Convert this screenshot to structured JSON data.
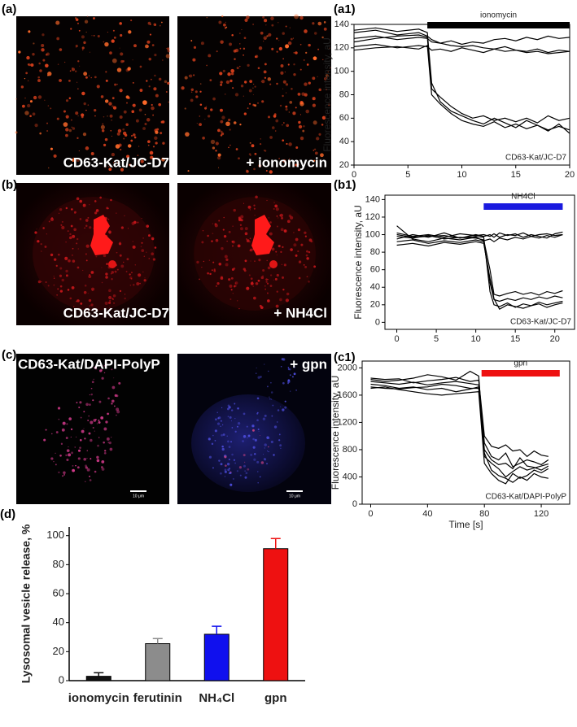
{
  "images": [
    {
      "panel": "(a)",
      "labels": [
        "CD63-Kat/JC-D7",
        "+ ionomycin"
      ]
    },
    {
      "panel": "(b)",
      "labels": [
        "CD63-Kat/JC-D7",
        "+ NH4Cl"
      ]
    },
    {
      "panel": "(c)",
      "labels": [
        "CD63-Kat/DAPI-PolyP",
        "+ gpn"
      ],
      "scale_bar": "10 μm"
    }
  ],
  "chart_data": [
    {
      "type": "line",
      "panel": "(a1)",
      "ylabel": "Fluorescence intensity, aU",
      "note": "CD63-Kat/JC-D7",
      "annotation_bar": {
        "label": "ionomycin",
        "x": [
          6.8,
          20
        ],
        "color": "#000000"
      },
      "xlim": [
        0,
        20
      ],
      "xticks": [
        0,
        5,
        10,
        15,
        20
      ],
      "ylim": [
        20,
        140
      ],
      "yticks": [
        20,
        40,
        60,
        80,
        100,
        120,
        140
      ],
      "x": [
        0,
        2,
        4,
        6,
        6.8,
        7.2,
        8,
        9,
        10,
        11,
        12,
        13,
        14,
        15,
        16,
        17,
        18,
        19,
        20
      ],
      "series": [
        {
          "color": "#000000",
          "values": [
            128,
            130,
            127,
            129,
            128,
            125,
            124,
            126,
            123,
            125,
            124,
            127,
            128,
            126,
            129,
            127,
            130,
            128,
            129
          ]
        },
        {
          "color": "#000000",
          "values": [
            121,
            123,
            120,
            122,
            121,
            118,
            119,
            117,
            120,
            118,
            116,
            119,
            117,
            118,
            116,
            117,
            115,
            116,
            117
          ]
        },
        {
          "color": "#000000",
          "values": [
            133,
            135,
            131,
            133,
            130,
            127,
            124,
            122,
            121,
            122,
            120,
            119,
            121,
            118,
            117,
            119,
            116,
            118,
            117
          ]
        },
        {
          "color": "#000000",
          "values": [
            125,
            128,
            130,
            131,
            129,
            85,
            78,
            70,
            64,
            60,
            62,
            58,
            60,
            57,
            60,
            56,
            62,
            58,
            60
          ]
        },
        {
          "color": "#000000",
          "values": [
            118,
            120,
            121,
            119,
            122,
            80,
            72,
            64,
            58,
            55,
            53,
            57,
            52,
            55,
            51,
            54,
            50,
            53,
            50
          ]
        },
        {
          "color": "#000000",
          "values": [
            135,
            137,
            134,
            136,
            133,
            90,
            74,
            66,
            62,
            58,
            55,
            60,
            56,
            52,
            58,
            54,
            49,
            55,
            47
          ]
        }
      ]
    },
    {
      "type": "line",
      "panel": "(b1)",
      "ylabel": "Fluorescence intensity, aU",
      "note": "CD63-Kat/JC-D7",
      "annotation_bar": {
        "label": "NH4Cl",
        "x": [
          11,
          21
        ],
        "color": "#1a1adf"
      },
      "xlim": [
        -1.5,
        22.5
      ],
      "xticks": [
        0,
        5,
        10,
        15,
        20
      ],
      "ylim": [
        -8,
        145
      ],
      "yticks": [
        0,
        20,
        40,
        60,
        80,
        100,
        120,
        140
      ],
      "x": [
        0,
        2,
        4,
        6,
        8,
        10,
        11,
        11.8,
        12.3,
        13,
        14,
        15,
        16,
        17,
        18,
        19,
        20,
        21
      ],
      "series": [
        {
          "color": "#000000",
          "values": [
            102,
            98,
            100,
            97,
            101,
            99,
            100,
            98,
            101,
            97,
            100,
            99,
            102,
            98,
            100,
            101,
            99,
            100
          ]
        },
        {
          "color": "#000000",
          "values": [
            95,
            100,
            97,
            102,
            96,
            100,
            98,
            100,
            97,
            102,
            99,
            101,
            97,
            100,
            98,
            96,
            101,
            103
          ]
        },
        {
          "color": "#000000",
          "values": [
            110,
            95,
            92,
            96,
            94,
            97,
            93,
            95,
            92,
            96,
            94,
            97,
            95,
            98,
            96,
            99,
            97,
            100
          ]
        },
        {
          "color": "#000000",
          "values": [
            98,
            96,
            99,
            95,
            97,
            96,
            94,
            60,
            32,
            30,
            33,
            35,
            32,
            34,
            31,
            35,
            33,
            36
          ]
        },
        {
          "color": "#000000",
          "values": [
            92,
            94,
            90,
            93,
            91,
            94,
            92,
            45,
            26,
            24,
            27,
            25,
            28,
            26,
            29,
            27,
            30,
            28
          ]
        },
        {
          "color": "#000000",
          "values": [
            100,
            97,
            98,
            99,
            96,
            98,
            97,
            35,
            20,
            18,
            22,
            17,
            21,
            19,
            23,
            20,
            22,
            24
          ]
        },
        {
          "color": "#000000",
          "values": [
            88,
            90,
            87,
            91,
            89,
            92,
            90,
            50,
            27,
            15,
            20,
            18,
            16,
            19,
            21,
            17,
            20,
            22
          ]
        }
      ]
    },
    {
      "type": "line",
      "panel": "(c1)",
      "ylabel": "Fluorescence intensity, aU",
      "xlabel": "Time [s]",
      "note": "CD63-Kat/DAPI-PolyP",
      "annotation_bar": {
        "label": "gpn",
        "x": [
          78,
          133
        ],
        "color": "#ee1111"
      },
      "xlim": [
        -6,
        140
      ],
      "xticks": [
        0,
        40,
        80,
        120
      ],
      "ylim": [
        0,
        2100
      ],
      "yticks": [
        0,
        400,
        800,
        1200,
        1600,
        2000
      ],
      "x": [
        0,
        10,
        20,
        30,
        40,
        50,
        60,
        70,
        76,
        80,
        85,
        90,
        95,
        100,
        105,
        110,
        115,
        120,
        125
      ],
      "series": [
        {
          "color": "#000000",
          "values": [
            1850,
            1830,
            1840,
            1780,
            1810,
            1830,
            1860,
            1800,
            1820,
            1000,
            850,
            820,
            870,
            780,
            800,
            700,
            780,
            720,
            700
          ]
        },
        {
          "color": "#000000",
          "values": [
            1800,
            1780,
            1760,
            1790,
            1750,
            1780,
            1800,
            1770,
            1750,
            900,
            700,
            650,
            750,
            550,
            600,
            650,
            620,
            580,
            650
          ]
        },
        {
          "color": "#000000",
          "values": [
            1760,
            1740,
            1700,
            1720,
            1680,
            1700,
            1650,
            1690,
            1720,
            700,
            600,
            520,
            400,
            480,
            550,
            500,
            530,
            560,
            590
          ]
        },
        {
          "color": "#000000",
          "values": [
            1700,
            1720,
            1680,
            1650,
            1620,
            1600,
            1620,
            1640,
            1650,
            600,
            450,
            350,
            300,
            450,
            380,
            420,
            500,
            460,
            520
          ]
        },
        {
          "color": "#000000",
          "values": [
            1830,
            1800,
            1820,
            1850,
            1900,
            1870,
            1820,
            1950,
            1880,
            750,
            500,
            420,
            380,
            320,
            400,
            350,
            450,
            400,
            380
          ]
        },
        {
          "color": "#000000",
          "values": [
            1720,
            1700,
            1690,
            1710,
            1720,
            1760,
            1740,
            1700,
            1700,
            800,
            650,
            580,
            600,
            520,
            680,
            560,
            540,
            500,
            560
          ]
        }
      ]
    },
    {
      "type": "bar",
      "panel": "(d)",
      "ylabel": "Lysosomal vesicle release, %",
      "categories": [
        "ionomycin",
        "ferutinin",
        "NH₄Cl",
        "gpn"
      ],
      "values": [
        3,
        25.5,
        32,
        91
      ],
      "errors": [
        2.5,
        3.5,
        5.5,
        7
      ],
      "colors": [
        "#111111",
        "#8c8c8c",
        "#1010ee",
        "#ee1111"
      ],
      "ylim": [
        0,
        106
      ],
      "yticks": [
        0,
        20,
        40,
        60,
        80,
        100
      ]
    }
  ]
}
